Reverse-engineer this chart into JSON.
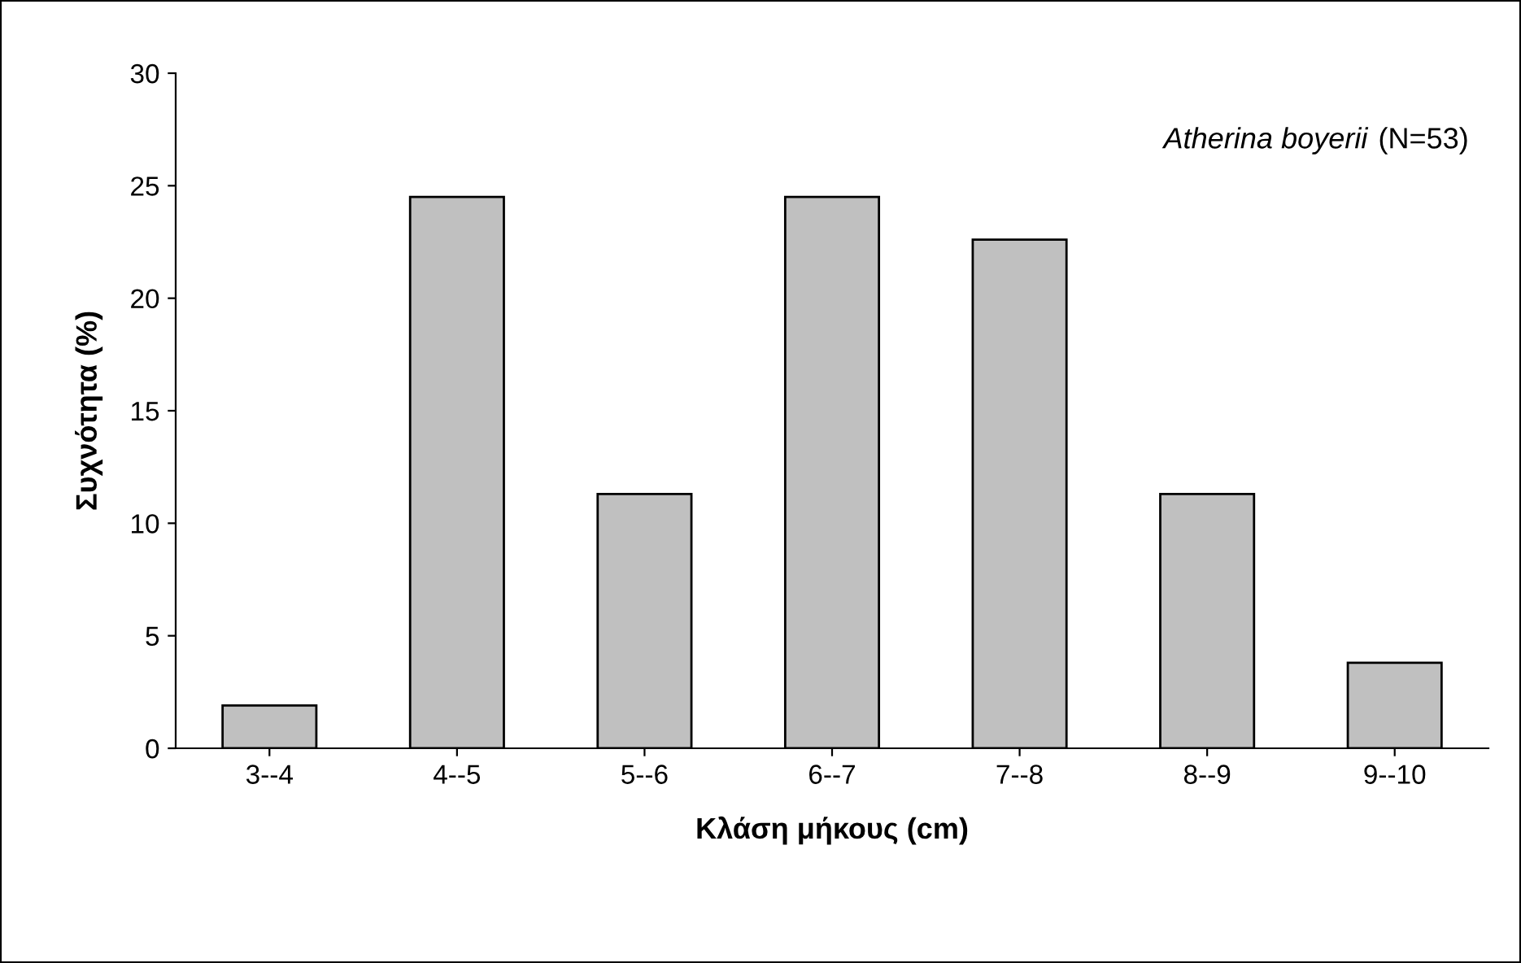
{
  "chart_data": {
    "type": "bar",
    "xlabel": "Κλάση μήκους (cm)",
    "ylabel": "Συχνότητα (%)",
    "categories": [
      "3--4",
      "4--5",
      "5--6",
      "6--7",
      "7--8",
      "8--9",
      "9--10"
    ],
    "values": [
      1.9,
      24.5,
      11.3,
      24.5,
      22.6,
      11.3,
      3.8
    ],
    "color": "#c0c0c0",
    "ylim": [
      0,
      30
    ],
    "yticks": [
      0,
      5,
      10,
      15,
      20,
      25,
      30
    ],
    "grid": false,
    "legend": false,
    "annotations": [
      "Atherina boyerii",
      "(N=53)"
    ]
  }
}
